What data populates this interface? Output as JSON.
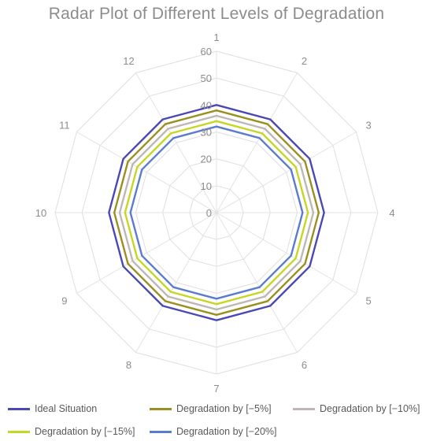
{
  "chart_data": {
    "type": "radar",
    "title": "Radar Plot of Different Levels of Degradation",
    "categories": [
      "1",
      "2",
      "3",
      "4",
      "5",
      "6",
      "7",
      "8",
      "9",
      "10",
      "11",
      "12"
    ],
    "radial_ticks": [
      "0",
      "10",
      "20",
      "30",
      "40",
      "50",
      "60"
    ],
    "rlim": [
      0,
      60
    ],
    "grid": true,
    "legend_position": "bottom",
    "series": [
      {
        "name": "Ideal Situation",
        "color": "#4b48b5",
        "values": [
          40,
          40,
          40,
          40,
          40,
          40,
          40,
          40,
          40,
          40,
          40,
          40
        ]
      },
      {
        "name": "Degradation by [−5%]",
        "color": "#9c8e1f",
        "values": [
          38,
          38,
          38,
          38,
          38,
          38,
          38,
          38,
          38,
          38,
          38,
          38
        ]
      },
      {
        "name": "Degradation by [−10%]",
        "color": "#c0b6b6",
        "values": [
          36,
          36,
          36,
          36,
          36,
          36,
          36,
          36,
          36,
          36,
          36,
          36
        ]
      },
      {
        "name": "Degradation by [−15%]",
        "color": "#c5d624",
        "values": [
          34,
          34,
          34,
          34,
          34,
          34,
          34,
          34,
          34,
          34,
          34,
          34
        ]
      },
      {
        "name": "Degradation by [−20%]",
        "color": "#5a7cd0",
        "values": [
          32,
          32,
          32,
          32,
          32,
          32,
          32,
          32,
          32,
          32,
          32,
          32
        ]
      }
    ]
  }
}
